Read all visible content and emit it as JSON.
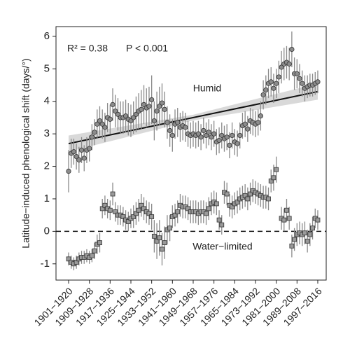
{
  "chart_data": {
    "type": "errorbar",
    "y_label": "Latitude−induced phenological shift (days/°)",
    "annotations": [
      "R² = 0.38",
      "P < 0.001"
    ],
    "categories": [
      "1901−1920",
      null,
      null,
      null,
      null,
      null,
      null,
      null,
      "1909−1928",
      null,
      null,
      null,
      null,
      null,
      null,
      null,
      "1917−1936",
      null,
      null,
      null,
      null,
      null,
      null,
      null,
      "1925−1944",
      null,
      null,
      null,
      null,
      null,
      null,
      null,
      "1933−1952",
      null,
      null,
      null,
      null,
      null,
      null,
      null,
      "1941−1960",
      null,
      null,
      null,
      null,
      null,
      null,
      null,
      "1949−1968",
      null,
      null,
      null,
      null,
      null,
      null,
      null,
      "1957−1976",
      null,
      null,
      null,
      null,
      null,
      null,
      null,
      "1965−1984",
      null,
      null,
      null,
      null,
      null,
      null,
      null,
      "1973−1992",
      null,
      null,
      null,
      null,
      null,
      null,
      null,
      "1981−2000",
      null,
      null,
      null,
      null,
      null,
      null,
      null,
      "1989−2008",
      null,
      null,
      null,
      null,
      null,
      null,
      null,
      "1997−2016"
    ],
    "series": [
      {
        "name": "Humid",
        "marker": "circle",
        "color": "#8c8c8c",
        "values": [
          1.85,
          2.4,
          2.45,
          2.3,
          2.2,
          2.5,
          2.25,
          2.5,
          2.55,
          2.9,
          3.05,
          3.3,
          3.4,
          3.3,
          3.2,
          3.5,
          3.45,
          3.9,
          3.7,
          3.6,
          3.5,
          3.5,
          3.55,
          3.45,
          3.4,
          3.5,
          3.6,
          3.7,
          3.75,
          3.9,
          3.8,
          3.85,
          4.05,
          3.4,
          3.7,
          3.85,
          3.95,
          3.75,
          3.35,
          3.1,
          2.95,
          3.3,
          3.35,
          3.2,
          3.25,
          3.2,
          3.0,
          2.95,
          3.0,
          2.95,
          3.0,
          2.9,
          3.1,
          2.95,
          3.05,
          2.9,
          3.0,
          2.75,
          2.8,
          2.95,
          2.85,
          2.9,
          2.65,
          2.95,
          2.75,
          2.7,
          2.95,
          3.25,
          3.3,
          3.15,
          3.4,
          3.35,
          3.3,
          3.35,
          3.55,
          4.2,
          4.35,
          4.55,
          4.6,
          4.4,
          4.55,
          4.75,
          5.05,
          5.15,
          5.2,
          5.15,
          5.6,
          4.85,
          4.85,
          4.7,
          4.55,
          4.4,
          4.45,
          4.5,
          4.5,
          4.55,
          4.6
        ],
        "errors": [
          0.65,
          0.45,
          0.4,
          0.4,
          0.4,
          0.4,
          0.4,
          0.4,
          0.4,
          0.4,
          0.4,
          0.45,
          0.45,
          0.45,
          0.45,
          0.45,
          0.45,
          0.5,
          0.5,
          0.5,
          0.5,
          0.5,
          0.5,
          0.5,
          0.5,
          0.5,
          0.55,
          0.55,
          0.6,
          0.6,
          0.6,
          0.6,
          0.75,
          0.6,
          0.6,
          0.6,
          0.6,
          0.55,
          0.5,
          0.5,
          0.5,
          0.45,
          0.45,
          0.45,
          0.45,
          0.45,
          0.4,
          0.4,
          0.4,
          0.4,
          0.4,
          0.4,
          0.4,
          0.4,
          0.4,
          0.4,
          0.4,
          0.4,
          0.4,
          0.4,
          0.4,
          0.4,
          0.4,
          0.4,
          0.4,
          0.4,
          0.4,
          0.4,
          0.4,
          0.4,
          0.4,
          0.4,
          0.4,
          0.4,
          0.45,
          0.45,
          0.45,
          0.45,
          0.45,
          0.45,
          0.45,
          0.5,
          0.5,
          0.5,
          0.5,
          0.5,
          0.55,
          0.5,
          0.45,
          0.45,
          0.4,
          0.4,
          0.35,
          0.35,
          0.35,
          0.35,
          0.35
        ]
      },
      {
        "name": "Water−limited",
        "marker": "square",
        "color": "#9a9a9a",
        "values": [
          -0.85,
          -0.95,
          -1.0,
          -0.95,
          -0.85,
          -0.8,
          -0.8,
          -0.75,
          -0.8,
          -0.75,
          -0.6,
          -0.4,
          -0.35,
          0.7,
          0.8,
          0.7,
          0.65,
          1.15,
          0.6,
          0.5,
          0.5,
          0.45,
          0.35,
          0.3,
          0.4,
          0.45,
          0.55,
          0.65,
          0.8,
          0.7,
          0.6,
          0.55,
          0.45,
          -0.15,
          -0.3,
          -0.2,
          -0.55,
          -0.35,
          0.05,
          0.1,
          0.45,
          0.5,
          0.6,
          0.8,
          0.75,
          0.75,
          0.7,
          0.6,
          0.6,
          0.6,
          0.55,
          0.6,
          0.6,
          0.55,
          0.7,
          0.85,
          0.9,
          0.85,
          0.35,
          0.2,
          1.2,
          1.15,
          0.8,
          0.75,
          0.85,
          0.9,
          1.0,
          1.05,
          1.1,
          1.0,
          1.15,
          1.25,
          1.2,
          1.15,
          1.1,
          1.05,
          1.05,
          1.0,
          1.55,
          1.65,
          1.9,
          null,
          0.4,
          0.35,
          0.65,
          0.4,
          -0.45,
          -0.25,
          -0.1,
          -0.05,
          -0.1,
          -0.05,
          -0.3,
          -0.1,
          0.1,
          0.4,
          0.35
        ],
        "errors": [
          0.2,
          0.2,
          0.2,
          0.2,
          0.2,
          0.2,
          0.2,
          0.2,
          0.2,
          0.2,
          0.25,
          0.3,
          0.3,
          0.3,
          0.3,
          0.3,
          0.3,
          0.35,
          0.3,
          0.3,
          0.3,
          0.3,
          0.3,
          0.3,
          0.3,
          0.35,
          0.35,
          0.35,
          0.35,
          0.35,
          0.35,
          0.35,
          0.4,
          0.5,
          0.55,
          0.55,
          0.5,
          0.5,
          0.45,
          0.4,
          0.35,
          0.35,
          0.35,
          0.35,
          0.35,
          0.35,
          0.35,
          0.35,
          0.35,
          0.35,
          0.35,
          0.35,
          0.35,
          0.35,
          0.35,
          0.35,
          0.35,
          0.35,
          0.3,
          0.3,
          0.35,
          0.35,
          0.35,
          0.35,
          0.35,
          0.35,
          0.35,
          0.35,
          0.35,
          0.35,
          0.35,
          0.35,
          0.35,
          0.35,
          0.35,
          0.35,
          0.35,
          0.35,
          0.35,
          0.4,
          0.4,
          null,
          0.35,
          0.35,
          0.35,
          0.35,
          0.35,
          0.35,
          0.35,
          0.35,
          0.35,
          0.35,
          0.35,
          0.35,
          0.35,
          0.3,
          0.3
        ]
      }
    ],
    "fit": {
      "values": [
        2.7,
        4.3
      ],
      "ci": [
        0.25,
        0.25
      ]
    },
    "hline": 0,
    "ylim": [
      -1.5,
      6.3
    ],
    "yticks": [
      -1,
      0,
      1,
      2,
      3,
      4,
      5,
      6
    ]
  }
}
